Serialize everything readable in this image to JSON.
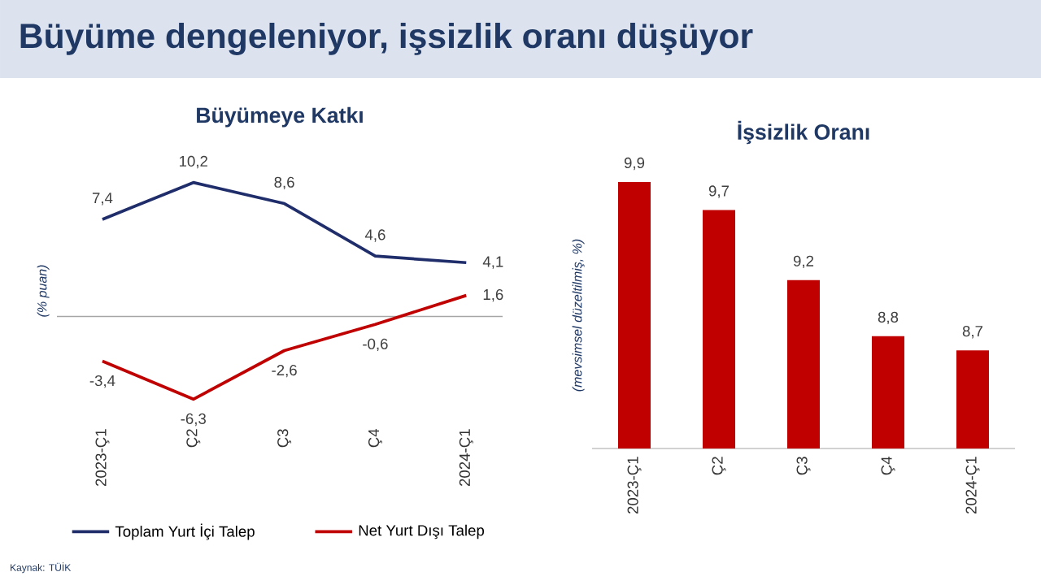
{
  "chart_data": [
    {
      "type": "line",
      "title": "Büyümeye Katkı",
      "ylabel": "(% puan)",
      "categories": [
        "2023-Ç1",
        "Ç2",
        "Ç3",
        "Ç4",
        "2024-Ç1"
      ],
      "series": [
        {
          "name": "Toplam Yurt İçi Talep",
          "color": "#1f2d6b",
          "values": [
            7.4,
            10.2,
            8.6,
            4.6,
            4.1
          ],
          "value_labels": [
            "7,4",
            "10,2",
            "8,6",
            "4,6",
            "4,1"
          ]
        },
        {
          "name": "Net Yurt Dışı Talep",
          "color": "#c00000",
          "values": [
            -3.4,
            -6.3,
            -2.6,
            -0.6,
            1.6
          ],
          "value_labels": [
            "-3,4",
            "-6,3",
            "-2,6",
            "-0,6",
            "1,6"
          ]
        }
      ],
      "tick_labels": "x",
      "legend": "bottom",
      "ref_lines": [
        {
          "axis": "y",
          "value": 0,
          "color": "#a6a6a6"
        }
      ],
      "annotations": [
        "Büyüme dengeleniyor, işsizlik oranı düşüyor",
        "Kaynak: TÜİK"
      ]
    },
    {
      "type": "bar",
      "title": "İşsizlik Oranı",
      "ylabel": "(mevsimsel düzeltilmiş, %)",
      "categories": [
        "2023-Ç1",
        "Ç2",
        "Ç3",
        "Ç4",
        "2024-Ç1"
      ],
      "values": [
        9.9,
        9.7,
        9.2,
        8.8,
        8.7
      ],
      "value_labels": [
        "9,9",
        "9,7",
        "9,2",
        "8,8",
        "8,7"
      ],
      "color": "#c00000",
      "ylim": [
        8,
        9.9
      ],
      "tick_labels": "x"
    }
  ]
}
